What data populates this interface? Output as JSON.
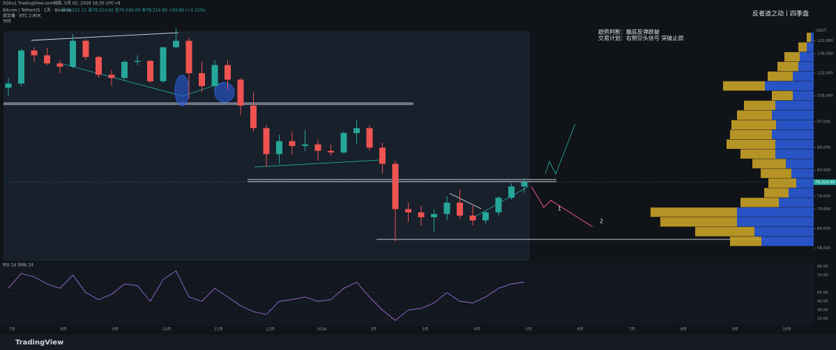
{
  "chart_data": {
    "type": "candlestick",
    "header": "5Q0u1 TradingView.com制图, 5月 02, 2026 16:35 UTC+8",
    "title": "Bitcoin / TetherUS · 1天 · Binance",
    "ohlc_text": "开78,221.12 高78,514.62 低76,040.00 收78,314.99 +93.86 (+0.12%)",
    "volume_text": "成交量 · BTC 2.85K",
    "sub_text": "分时",
    "brand": "反者道之动丨四季盘",
    "notes": [
      "趋势判断：触底反弹跌破",
      "交易计划：右侧空头信号 突破止损"
    ],
    "wave_labels": [
      "1",
      "2"
    ],
    "currency": "USDT",
    "ylim": [
      54000,
      126000
    ],
    "yticks": [
      {
        "value": 122000,
        "label": "122,000"
      },
      {
        "value": 118000,
        "label": "118,000"
      },
      {
        "value": 112000,
        "label": "112,000"
      },
      {
        "value": 105000,
        "label": "105,000"
      },
      {
        "value": 97000,
        "label": "97,000"
      },
      {
        "value": 89000,
        "label": "89,000"
      },
      {
        "value": 82000,
        "label": "82,000"
      },
      {
        "value": 74000,
        "label": "74,000"
      },
      {
        "value": 70000,
        "label": "70,000"
      },
      {
        "value": 64000,
        "label": "64,000"
      },
      {
        "value": 58000,
        "label": "58,000"
      }
    ],
    "last_price": {
      "value": 78314.99,
      "label": "78,314.99"
    },
    "xtick_labels": [
      "7月",
      "8月",
      "9月",
      "10月",
      "11月",
      "12月",
      "2026",
      "2月",
      "3月",
      "4月",
      "5月",
      "6月",
      "7月",
      "8月",
      "9月",
      "10月"
    ],
    "candles": {
      "open": [
        107500,
        108800,
        119000,
        117500,
        115000,
        114000,
        122000,
        117000,
        111500,
        110500,
        115500,
        115800,
        109500,
        120000,
        122000,
        112000,
        108000,
        114500,
        110000,
        102000,
        95000,
        87000,
        91000,
        89500,
        90000,
        88000,
        87500,
        93500,
        95000,
        89000,
        84000,
        70000,
        69000,
        67500,
        68500,
        72000,
        68000,
        66500,
        69000,
        73500,
        77000
      ],
      "high": [
        110500,
        119500,
        120000,
        119800,
        116000,
        124000,
        122500,
        117500,
        113000,
        116000,
        117500,
        116000,
        120000,
        126000,
        123000,
        115500,
        116000,
        116000,
        110500,
        106000,
        96000,
        93000,
        94000,
        94500,
        91500,
        90000,
        94000,
        97500,
        96000,
        90500,
        85000,
        72000,
        71000,
        70000,
        74000,
        76000,
        71000,
        69500,
        74000,
        78000,
        79500
      ],
      "low": [
        105000,
        108000,
        115500,
        114500,
        112000,
        113500,
        116000,
        110500,
        108000,
        110000,
        114500,
        109000,
        109000,
        119500,
        104000,
        106000,
        107000,
        107000,
        99000,
        94000,
        83000,
        84000,
        87000,
        88000,
        85000,
        86500,
        87000,
        90000,
        88000,
        81000,
        60000,
        66000,
        65000,
        63000,
        66500,
        67000,
        65000,
        65500,
        68000,
        73000,
        75000
      ],
      "close": [
        108800,
        119000,
        117500,
        115000,
        114000,
        122000,
        117000,
        111500,
        110500,
        115500,
        115800,
        109500,
        120000,
        122000,
        112000,
        108000,
        114500,
        110000,
        102000,
        95000,
        87000,
        91000,
        89500,
        90000,
        88000,
        87500,
        93500,
        95000,
        89000,
        84000,
        70000,
        69000,
        67500,
        68500,
        72000,
        68000,
        66500,
        69000,
        73500,
        77000,
        78300
      ]
    },
    "up_color": "#26a69a",
    "down_color": "#ef5350",
    "profile": {
      "levels": [
        123000,
        120000,
        117000,
        114000,
        111000,
        108000,
        105000,
        102000,
        99000,
        96000,
        93000,
        90000,
        87000,
        84000,
        81000,
        78000,
        75000,
        72000,
        69000,
        66000,
        63000,
        60000
      ],
      "down": [
        6,
        12,
        22,
        30,
        36,
        60,
        30,
        45,
        50,
        64,
        60,
        70,
        50,
        48,
        44,
        40,
        35,
        55,
        124,
        110,
        85,
        45
      ],
      "up": [
        4,
        10,
        20,
        22,
        30,
        70,
        30,
        55,
        60,
        54,
        60,
        55,
        55,
        40,
        32,
        25,
        36,
        50,
        110,
        110,
        85,
        75
      ],
      "down_color": "#c9a227",
      "up_color": "#2a5bd7"
    },
    "rsi": {
      "label": "RSI 14 SMA 14",
      "ylim": [
        12,
        84
      ],
      "yticks": [
        {
          "value": 80,
          "label": "80.00"
        },
        {
          "value": 70,
          "label": "70.00"
        },
        {
          "value": 50,
          "label": "50.00"
        },
        {
          "value": 40,
          "label": "40.00"
        },
        {
          "value": 30,
          "label": "30.00"
        },
        {
          "value": 20,
          "label": "20.00"
        }
      ],
      "color": "#9c6fd6",
      "values": [
        55,
        72,
        68,
        60,
        55,
        70,
        50,
        42,
        48,
        60,
        58,
        40,
        65,
        75,
        45,
        40,
        55,
        45,
        35,
        28,
        25,
        40,
        42,
        45,
        40,
        42,
        55,
        62,
        45,
        30,
        18,
        30,
        32,
        38,
        50,
        40,
        38,
        45,
        55,
        60,
        62
      ]
    },
    "logo": "TradingView"
  }
}
